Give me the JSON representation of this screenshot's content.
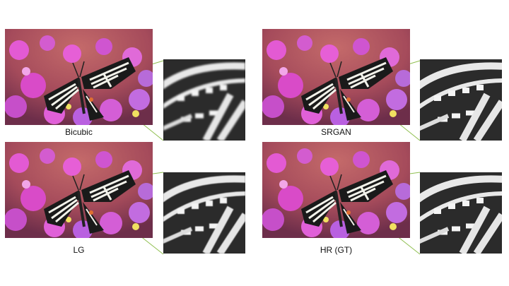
{
  "figure": {
    "panels": [
      {
        "id": "bicubic",
        "caption": "Bicubic"
      },
      {
        "id": "srgan",
        "caption": "SRGAN"
      },
      {
        "id": "lg",
        "caption": "LG"
      },
      {
        "id": "hr",
        "caption": "HR (GT)"
      }
    ]
  },
  "colors": {
    "connector": "#8fbf4f",
    "flower_pink": "#e04fd0",
    "flower_purple": "#b070e0",
    "background_red": "#b05060"
  },
  "icons": [
    "butterfly-photo",
    "zoom-crop"
  ]
}
